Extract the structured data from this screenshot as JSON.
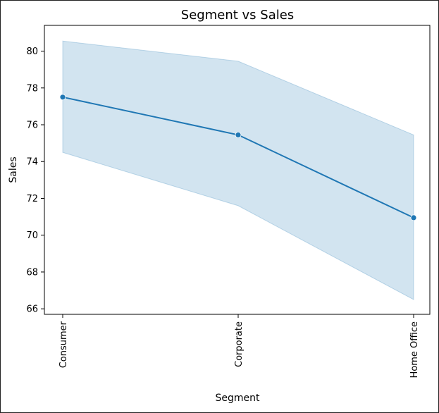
{
  "chart_data": {
    "type": "line",
    "title": "Segment vs Sales",
    "xlabel": "Segment",
    "ylabel": "Sales",
    "categories": [
      "Consumer",
      "Corporate",
      "Home Office"
    ],
    "series": [
      {
        "values": [
          77.5,
          75.45,
          70.95
        ],
        "ci_lower": [
          74.5,
          71.6,
          66.5
        ],
        "ci_upper": [
          80.55,
          79.45,
          75.45
        ]
      }
    ],
    "ylim": [
      65.7,
      81.4
    ],
    "yticks": [
      66,
      68,
      70,
      72,
      74,
      76,
      78,
      80
    ],
    "grid": false,
    "colors": {
      "line": "#1f77b4",
      "band": "#1f77b4",
      "axis": "#000000"
    }
  }
}
